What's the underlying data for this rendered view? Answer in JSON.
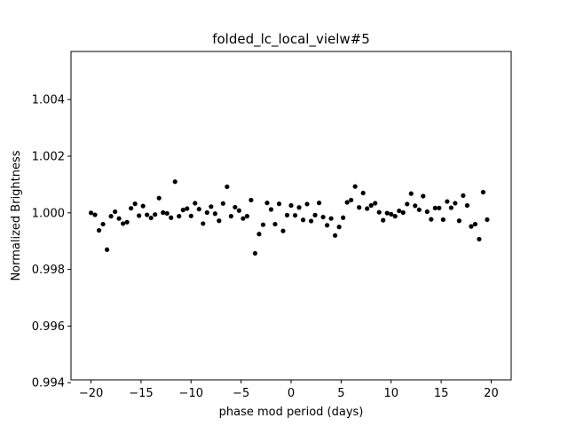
{
  "chart_data": {
    "type": "scatter",
    "title": "folded_lc_local_vielw#5",
    "xlabel": "phase mod period (days)",
    "ylabel": "Normalized Brightness",
    "xlim": [
      -22.0,
      22.0
    ],
    "ylim": [
      0.9941,
      1.0057
    ],
    "xticks": [
      -20,
      -15,
      -10,
      -5,
      0,
      5,
      10,
      15,
      20
    ],
    "xtick_labels": [
      "−20",
      "−15",
      "−10",
      "−5",
      "0",
      "5",
      "10",
      "15",
      "20"
    ],
    "yticks": [
      0.994,
      0.996,
      0.998,
      1.0,
      1.002,
      1.004
    ],
    "ytick_labels": [
      "0.994",
      "0.996",
      "0.998",
      "1.000",
      "1.002",
      "1.004"
    ],
    "grid": false,
    "marker_color": "#000000",
    "points": [
      [
        -20.0,
        1.0
      ],
      [
        -19.6,
        0.99993
      ],
      [
        -19.2,
        0.99938
      ],
      [
        -18.8,
        0.9996
      ],
      [
        -18.4,
        0.9987
      ],
      [
        -18.0,
        0.99988
      ],
      [
        -17.6,
        1.00004
      ],
      [
        -17.2,
        0.9998
      ],
      [
        -16.8,
        0.99962
      ],
      [
        -16.4,
        0.99967
      ],
      [
        -16.0,
        1.00016
      ],
      [
        -15.6,
        1.00032
      ],
      [
        -15.2,
        0.9999
      ],
      [
        -14.8,
        1.00024
      ],
      [
        -14.4,
        0.99993
      ],
      [
        -14.0,
        0.99982
      ],
      [
        -13.6,
        0.99994
      ],
      [
        -13.2,
        1.00052
      ],
      [
        -12.8,
        1.00001
      ],
      [
        -12.4,
        0.99998
      ],
      [
        -12.0,
        0.99983
      ],
      [
        -11.6,
        1.0011
      ],
      [
        -11.2,
        0.99988
      ],
      [
        -10.8,
        1.0001
      ],
      [
        -10.4,
        1.00015
      ],
      [
        -10.0,
        0.99989
      ],
      [
        -9.6,
        1.00034
      ],
      [
        -9.2,
        1.00013
      ],
      [
        -8.8,
        0.99962
      ],
      [
        -8.4,
        1.00001
      ],
      [
        -8.0,
        1.00022
      ],
      [
        -7.6,
        0.99997
      ],
      [
        -7.2,
        0.99972
      ],
      [
        -6.8,
        1.00033
      ],
      [
        -6.4,
        1.00092
      ],
      [
        -6.0,
        0.99988
      ],
      [
        -5.6,
        1.0002
      ],
      [
        -5.2,
        1.00008
      ],
      [
        -4.8,
        0.9998
      ],
      [
        -4.4,
        0.99988
      ],
      [
        -4.0,
        1.00045
      ],
      [
        -3.6,
        0.99857
      ],
      [
        -3.2,
        0.99925
      ],
      [
        -2.8,
        0.99958
      ],
      [
        -2.4,
        1.00035
      ],
      [
        -2.0,
        1.00012
      ],
      [
        -1.6,
        0.9996
      ],
      [
        -1.2,
        1.00032
      ],
      [
        -0.8,
        0.99936
      ],
      [
        -0.4,
        0.99992
      ],
      [
        0.0,
        1.00026
      ],
      [
        0.4,
        0.99991
      ],
      [
        0.8,
        1.00019
      ],
      [
        1.2,
        0.99975
      ],
      [
        1.6,
        1.00031
      ],
      [
        2.0,
        0.99971
      ],
      [
        2.4,
        0.99992
      ],
      [
        2.8,
        1.00035
      ],
      [
        3.2,
        0.99985
      ],
      [
        3.6,
        0.99956
      ],
      [
        4.0,
        0.9998
      ],
      [
        4.4,
        0.9992
      ],
      [
        4.8,
        0.9995
      ],
      [
        5.2,
        0.99983
      ],
      [
        5.6,
        1.00037
      ],
      [
        6.0,
        1.00045
      ],
      [
        6.4,
        1.00093
      ],
      [
        6.8,
        1.00019
      ],
      [
        7.2,
        1.0007
      ],
      [
        7.6,
        1.00015
      ],
      [
        8.0,
        1.00026
      ],
      [
        8.4,
        1.00034
      ],
      [
        8.8,
        1.00002
      ],
      [
        9.2,
        0.99974
      ],
      [
        9.6,
        0.99999
      ],
      [
        10.0,
        0.99995
      ],
      [
        10.4,
        0.99988
      ],
      [
        10.8,
        1.00007
      ],
      [
        11.2,
        1.00001
      ],
      [
        11.6,
        1.00031
      ],
      [
        12.0,
        1.00068
      ],
      [
        12.4,
        1.00025
      ],
      [
        12.8,
        1.00011
      ],
      [
        13.2,
        1.00059
      ],
      [
        13.6,
        1.00004
      ],
      [
        14.0,
        0.99977
      ],
      [
        14.4,
        1.00017
      ],
      [
        14.8,
        1.00017
      ],
      [
        15.2,
        0.99976
      ],
      [
        15.6,
        1.0004
      ],
      [
        16.0,
        1.00018
      ],
      [
        16.4,
        1.00034
      ],
      [
        16.8,
        0.99972
      ],
      [
        17.2,
        1.00061
      ],
      [
        17.6,
        1.00026
      ],
      [
        18.0,
        0.99952
      ],
      [
        18.4,
        0.9996
      ],
      [
        18.8,
        0.99907
      ],
      [
        19.2,
        1.00073
      ],
      [
        19.6,
        0.99976
      ]
    ]
  }
}
